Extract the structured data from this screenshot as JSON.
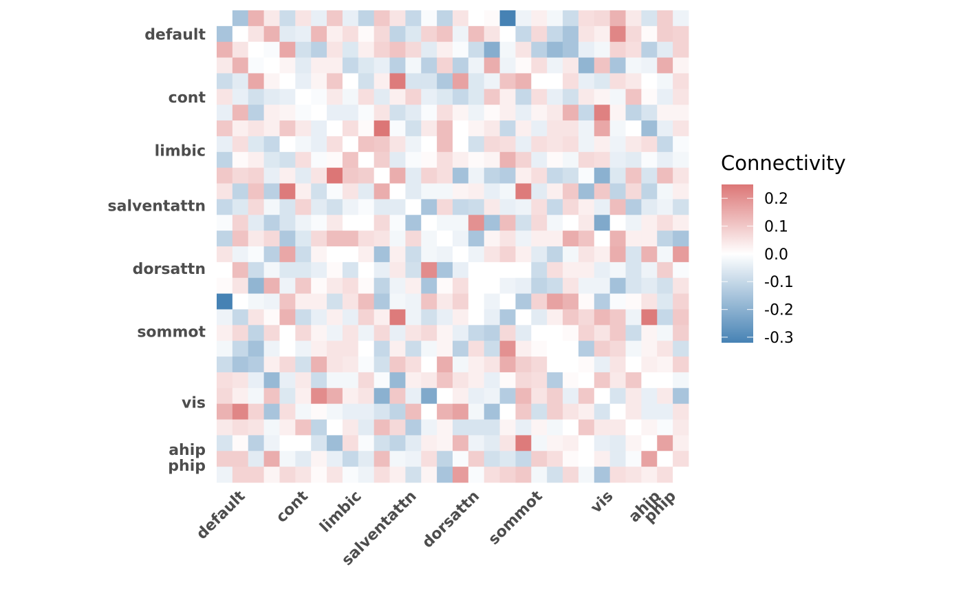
{
  "chart_data": {
    "type": "heatmap",
    "title": "",
    "xlabel": "",
    "ylabel": "",
    "n": 30,
    "group_ticks": [
      {
        "label": "default",
        "pos": 1.5
      },
      {
        "label": "cont",
        "pos": 5.5
      },
      {
        "label": "limbic",
        "pos": 8.9
      },
      {
        "label": "salventattn",
        "pos": 12.4
      },
      {
        "label": "dorsattn",
        "pos": 16.4
      },
      {
        "label": "sommot",
        "pos": 20.4
      },
      {
        "label": "vis",
        "pos": 24.9
      },
      {
        "label": "ahip",
        "pos": 27.9
      },
      {
        "label": "phip",
        "pos": 28.9
      }
    ],
    "legend": {
      "title": "Connectivity",
      "placement": "right",
      "range": [
        -0.32,
        0.25
      ],
      "ticks": [
        0.2,
        0.1,
        0.0,
        -0.1,
        -0.2,
        -0.3
      ],
      "tick_labels": [
        "0.2",
        "0.1",
        "0.0",
        "-0.1",
        "-0.2",
        "-0.3"
      ],
      "low_color": "#4682b4",
      "mid_color": "#ffffff",
      "high_color": "#dc7676"
    },
    "values": [
      [
        0,
        -0.15,
        0.14,
        0.04,
        -0.09,
        0.05,
        -0.04,
        0.1,
        -0.04,
        -0.11,
        0.1,
        0.05,
        -0.1,
        -0.01,
        -0.11,
        0.05,
        0,
        0.01,
        -0.32,
        -0.03,
        0.03,
        -0.02,
        -0.09,
        0.06,
        0.07,
        0.14,
        0.04,
        -0.07,
        0.09,
        -0.03
      ],
      [
        -0.15,
        0,
        0.05,
        0.14,
        -0.05,
        -0.04,
        0.13,
        0.03,
        0.06,
        0.01,
        0.07,
        -0.11,
        -0.06,
        0.08,
        0.11,
        -0.03,
        0.12,
        0.05,
        0,
        -0.1,
        0.07,
        -0.1,
        -0.15,
        0.05,
        0.03,
        0.22,
        0.07,
        0.01,
        0.09,
        0.08
      ],
      [
        0.14,
        0.05,
        0,
        -0.01,
        0.16,
        -0.08,
        -0.12,
        0.05,
        -0.06,
        0.03,
        0.08,
        0.11,
        0.07,
        -0.05,
        0.03,
        -0.01,
        -0.09,
        -0.21,
        -0.02,
        0.05,
        -0.12,
        -0.18,
        -0.15,
        -0.04,
        -0.02,
        0.08,
        0.06,
        -0.12,
        -0.05,
        0.08
      ],
      [
        0.04,
        0.14,
        -0.01,
        0,
        0.02,
        -0.05,
        0.03,
        0.03,
        -0.1,
        -0.06,
        -0.04,
        -0.12,
        -0.02,
        -0.12,
        0.08,
        -0.12,
        -0.03,
        0.15,
        -0.03,
        0.01,
        0.06,
        -0.03,
        0.04,
        -0.19,
        0.11,
        -0.15,
        -0.02,
        -0.03,
        0.15,
        0.02
      ],
      [
        -0.09,
        -0.05,
        0.16,
        0.02,
        0,
        -0.04,
        0.02,
        0.1,
        0,
        -0.08,
        0.03,
        0.24,
        -0.07,
        -0.07,
        -0.14,
        0.17,
        -0.06,
        -0.03,
        0.11,
        0.14,
        0,
        0,
        0.06,
        -0.04,
        -0.06,
        0.06,
        0.04,
        0,
        -0.02,
        0.06
      ],
      [
        0.05,
        -0.04,
        -0.08,
        -0.05,
        -0.04,
        0,
        -0.01,
        0.04,
        -0.02,
        0.06,
        -0.05,
        0.03,
        0.08,
        -0.04,
        -0.06,
        -0.1,
        -0.06,
        0.1,
        0.03,
        -0.1,
        0.06,
        -0.04,
        -0.08,
        0.04,
        0.02,
        -0.02,
        0.11,
        0.01,
        -0.04,
        0.05
      ],
      [
        -0.04,
        0.13,
        -0.12,
        0.03,
        0.02,
        -0.01,
        0,
        -0.04,
        -0.04,
        -0.01,
        0.05,
        -0.08,
        -0.05,
        -0.01,
        0.06,
        0.02,
        -0.03,
        0.01,
        0.03,
        -0.04,
        0.02,
        0.04,
        0.14,
        -0.1,
        0.23,
        0.02,
        -0.11,
        -0.07,
        0.02,
        0.02
      ],
      [
        0.1,
        0.03,
        0.05,
        0.03,
        0.1,
        0.04,
        -0.04,
        0,
        0.06,
        0.01,
        0.25,
        -0.01,
        -0.08,
        0.04,
        0.12,
        0,
        0.02,
        0.04,
        -0.1,
        0.03,
        -0.04,
        0.05,
        0.05,
        -0.03,
        0.16,
        -0.02,
        0,
        -0.17,
        -0.04,
        0.05
      ],
      [
        -0.04,
        0.06,
        -0.06,
        -0.1,
        0,
        -0.02,
        -0.04,
        0.06,
        0,
        0.11,
        0.1,
        0.05,
        -0.03,
        0,
        0.12,
        0,
        -0.08,
        0.07,
        0.06,
        -0.04,
        0.06,
        0.05,
        0.06,
        -0.03,
        0.03,
        -0.03,
        0.04,
        0.06,
        -0.1,
        -0.01
      ],
      [
        -0.11,
        0.01,
        0.03,
        -0.06,
        -0.08,
        0.06,
        -0.01,
        0.01,
        0.11,
        0,
        0.09,
        -0.05,
        -0.01,
        0.01,
        0.06,
        0.03,
        0.01,
        0.02,
        0.14,
        0.08,
        -0.04,
        0.01,
        -0.02,
        0.07,
        0.06,
        -0.04,
        -0.05,
        -0.01,
        -0.04,
        -0.02
      ],
      [
        0.1,
        0.07,
        0.08,
        -0.04,
        0.03,
        -0.05,
        0.05,
        0.25,
        0.1,
        0.09,
        0,
        0.15,
        -0.05,
        0.08,
        0.06,
        -0.16,
        -0.03,
        -0.11,
        -0.13,
        0.03,
        0.06,
        -0.1,
        -0.08,
        -0.01,
        -0.2,
        -0.06,
        0.11,
        -0.07,
        0.12,
        0.05
      ],
      [
        0.05,
        -0.11,
        0.11,
        -0.12,
        0.24,
        0.03,
        -0.08,
        -0.01,
        0.05,
        -0.05,
        0.15,
        0,
        -0.05,
        -0.02,
        -0.02,
        0.02,
        0.03,
        -0.04,
        -0.02,
        0.24,
        -0.05,
        0.03,
        0.1,
        -0.17,
        0.1,
        -0.11,
        0.07,
        -0.11,
        -0.02,
        0.03
      ],
      [
        -0.1,
        -0.06,
        0.07,
        -0.02,
        -0.07,
        0.08,
        -0.05,
        -0.08,
        -0.03,
        -0.01,
        -0.05,
        -0.05,
        0,
        -0.15,
        0.07,
        -0.1,
        -0.09,
        0.04,
        -0.04,
        -0.03,
        0.06,
        -0.1,
        0.07,
        0.03,
        -0.04,
        0.12,
        -0.13,
        -0.05,
        -0.03,
        -0.08
      ],
      [
        -0.01,
        0.08,
        -0.05,
        -0.12,
        -0.07,
        -0.03,
        -0.01,
        0.04,
        0,
        0,
        0.07,
        -0.01,
        -0.15,
        0,
        -0.02,
        -0.02,
        0.2,
        -0.16,
        0.12,
        -0.08,
        0.07,
        -0.02,
        0,
        0.04,
        -0.22,
        0,
        -0.03,
        0.03,
        0.06,
        0.03
      ],
      [
        -0.11,
        0.11,
        0.04,
        0.07,
        -0.14,
        -0.06,
        0.07,
        0.12,
        0.12,
        0.06,
        0.05,
        -0.02,
        0.07,
        -0.02,
        0,
        -0.03,
        -0.15,
        0.02,
        0.05,
        -0.03,
        0.03,
        0.03,
        0.15,
        0.11,
        0,
        0.14,
        0.03,
        0.03,
        -0.11,
        -0.15
      ],
      [
        0.05,
        -0.03,
        -0.01,
        -0.12,
        0.16,
        -0.09,
        0.02,
        0,
        0,
        0.03,
        -0.16,
        0.03,
        -0.09,
        -0.02,
        -0.03,
        0,
        -0.03,
        0.05,
        0.08,
        0.03,
        -0.05,
        -0.11,
        -0.02,
        0.05,
        0.03,
        0.15,
        -0.07,
        0.14,
        -0.02,
        0.18
      ],
      [
        0,
        0.12,
        -0.09,
        -0.02,
        -0.06,
        -0.06,
        -0.04,
        0.01,
        -0.07,
        0,
        -0.04,
        0.04,
        -0.08,
        0.21,
        -0.15,
        -0.04,
        0,
        0,
        0,
        0,
        -0.09,
        0.06,
        0.03,
        0.03,
        -0.04,
        -0.02,
        -0.07,
        -0.03,
        0.09,
        -0.01
      ],
      [
        0.01,
        0.05,
        -0.19,
        0.14,
        -0.03,
        0.1,
        0.01,
        0.04,
        0.06,
        0.01,
        -0.11,
        -0.03,
        0.03,
        -0.15,
        0.01,
        0.06,
        0,
        0,
        -0.03,
        -0.04,
        -0.11,
        -0.09,
        0.05,
        -0.03,
        -0.03,
        -0.16,
        -0.07,
        -0.05,
        -0.08,
        0.05
      ],
      [
        -0.32,
        0,
        -0.02,
        -0.03,
        0.11,
        0.03,
        0.03,
        -0.08,
        0.05,
        0.12,
        -0.14,
        -0.02,
        -0.03,
        0.11,
        0.04,
        0.08,
        0,
        -0.03,
        0,
        -0.14,
        0.08,
        0.17,
        0.14,
        0.01,
        -0.13,
        -0.01,
        0.01,
        0.05,
        -0.06,
        0.08
      ],
      [
        -0.03,
        -0.1,
        0.05,
        0.01,
        0.14,
        -0.09,
        -0.04,
        0.03,
        -0.04,
        0.08,
        0.03,
        0.24,
        -0.03,
        -0.08,
        -0.04,
        0.03,
        0,
        -0.04,
        -0.14,
        0,
        -0.05,
        0.03,
        0.1,
        0.07,
        0.13,
        0.1,
        -0.03,
        0.24,
        -0.1,
        0.1
      ],
      [
        0.03,
        0.07,
        -0.11,
        0.07,
        0,
        0.07,
        0.02,
        -0.03,
        0.05,
        -0.03,
        0.07,
        -0.04,
        0.05,
        0.07,
        0.02,
        -0.04,
        -0.1,
        -0.12,
        0.07,
        -0.05,
        0,
        0,
        0.01,
        0.08,
        0.05,
        0.1,
        -0.09,
        0.02,
        -0.02,
        0.09
      ],
      [
        -0.02,
        -0.1,
        -0.16,
        -0.03,
        0,
        -0.03,
        0.03,
        0.05,
        0.05,
        0,
        -0.1,
        0.03,
        -0.09,
        -0.02,
        0.02,
        -0.12,
        0.06,
        -0.09,
        0.2,
        0.03,
        0.01,
        0,
        0,
        -0.13,
        0.09,
        0.07,
        -0.02,
        0.02,
        0.05,
        -0.08
      ],
      [
        -0.09,
        -0.15,
        -0.13,
        0.03,
        0.07,
        -0.08,
        0.14,
        0.05,
        0.04,
        -0.01,
        -0.08,
        0.1,
        0.06,
        0,
        0.15,
        -0.02,
        0.03,
        0.05,
        0.15,
        0.09,
        0.07,
        0,
        0,
        0.01,
        -0.04,
        0.05,
        0,
        0.03,
        0.02,
        0.08
      ],
      [
        0.06,
        0.05,
        -0.04,
        -0.18,
        -0.04,
        0.04,
        -0.09,
        -0.02,
        -0.02,
        0.07,
        -0.01,
        -0.18,
        0.03,
        0.04,
        0.11,
        0.05,
        0.03,
        -0.04,
        0.01,
        0.07,
        0.06,
        -0.13,
        0.01,
        0,
        0.1,
        0.04,
        0.1,
        0,
        0,
        -0.02
      ],
      [
        0.07,
        0.03,
        -0.02,
        0.11,
        -0.06,
        0.03,
        0.21,
        0.15,
        0.03,
        0.05,
        -0.2,
        0.1,
        -0.04,
        -0.22,
        0,
        0.03,
        -0.04,
        -0.03,
        -0.13,
        0.13,
        0.05,
        0.09,
        -0.04,
        0.1,
        0,
        -0.07,
        0.04,
        -0.04,
        0.04,
        -0.15
      ],
      [
        0.14,
        0.22,
        0.08,
        -0.15,
        0.06,
        -0.02,
        0.01,
        -0.02,
        -0.04,
        -0.04,
        -0.07,
        -0.11,
        0.12,
        0,
        0.14,
        0.17,
        -0.02,
        -0.16,
        0,
        0.1,
        -0.08,
        0.09,
        0.05,
        0.03,
        -0.07,
        0,
        0.04,
        -0.04,
        -0.04,
        0.05
      ],
      [
        0.04,
        0.06,
        0.05,
        -0.02,
        0.03,
        0.11,
        -0.11,
        0,
        0.04,
        -0.05,
        0.12,
        0.07,
        -0.13,
        -0.03,
        0.02,
        -0.07,
        -0.07,
        -0.07,
        0.02,
        -0.04,
        0.02,
        -0.02,
        0,
        0.1,
        0.04,
        0.04,
        0,
        0.02,
        -0.01,
        0.04
      ],
      [
        -0.07,
        0.01,
        -0.12,
        -0.03,
        0,
        0,
        -0.07,
        -0.17,
        0.06,
        -0.01,
        -0.08,
        -0.11,
        -0.05,
        0.03,
        0.02,
        0.13,
        -0.03,
        -0.05,
        0.05,
        0.24,
        -0.02,
        0.02,
        0.03,
        0,
        -0.04,
        -0.05,
        0.02,
        0,
        0.17,
        0.03
      ],
      [
        0.09,
        0.09,
        -0.05,
        0.15,
        -0.02,
        -0.05,
        0.02,
        -0.04,
        -0.1,
        -0.05,
        0.12,
        -0.02,
        -0.03,
        0.06,
        -0.11,
        -0.01,
        0.09,
        -0.08,
        -0.06,
        -0.1,
        0.09,
        0.06,
        0.01,
        0,
        0.03,
        -0.05,
        -0.01,
        0.17,
        0,
        0.06
      ],
      [
        -0.03,
        0.08,
        0.08,
        0.02,
        0.07,
        0.05,
        0.01,
        0.05,
        -0.01,
        -0.03,
        0.06,
        0.03,
        -0.08,
        0.02,
        -0.15,
        0.18,
        -0.01,
        0.06,
        0.08,
        0.1,
        -0.02,
        -0.08,
        0.07,
        -0.02,
        -0.15,
        0.06,
        0.05,
        0.03,
        0.06,
        0
      ]
    ]
  }
}
